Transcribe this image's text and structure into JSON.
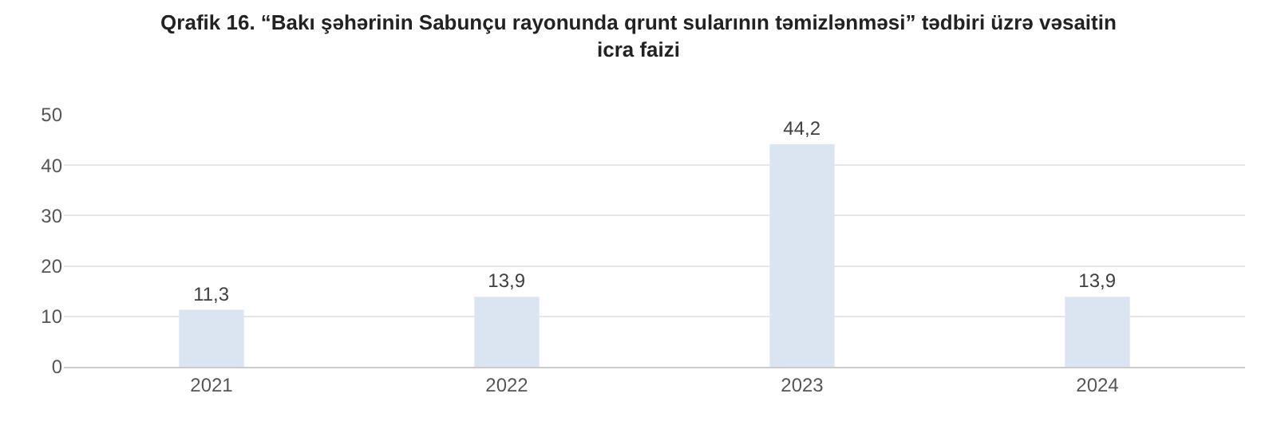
{
  "chart_data": {
    "type": "bar",
    "title": "Qrafik 16. “Bakı şəhərinin Sabunçu rayonunda qrunt sularının təmizlənməsi” tədbiri üzrə vəsaitin icra faizi",
    "categories": [
      "2021",
      "2022",
      "2023",
      "2024"
    ],
    "values": [
      11.3,
      13.9,
      44.2,
      13.9
    ],
    "value_labels": [
      "11,3",
      "13,9",
      "44,2",
      "13,9"
    ],
    "color": "#dbe5f2",
    "ylim": [
      0,
      50
    ],
    "yticks": [
      0,
      10,
      20,
      30,
      40,
      50
    ],
    "grid": "y",
    "legend": false
  }
}
